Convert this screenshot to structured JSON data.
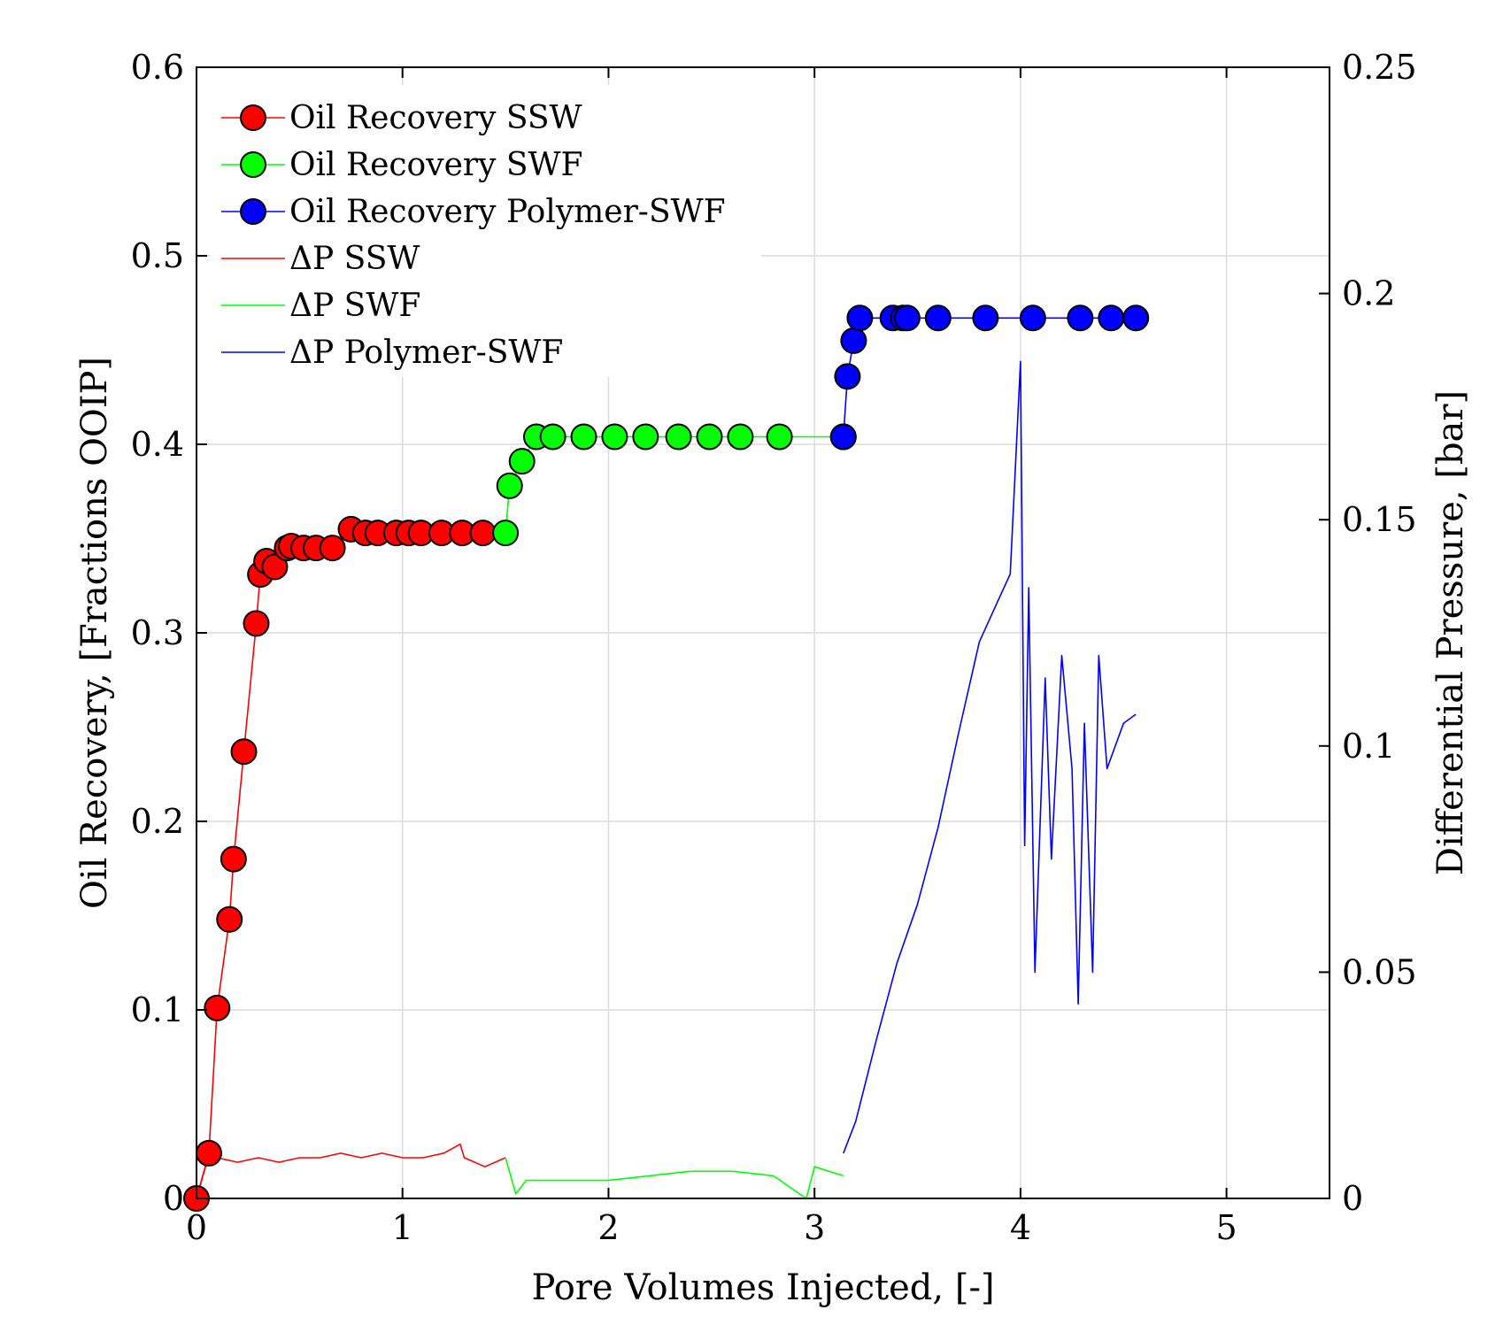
{
  "chart_data": {
    "type": "line",
    "xlabel": "Pore Volumes Injected, [-]",
    "ylabel_left": "Oil Recovery, [Fractions OOIP]",
    "ylabel_right": "Differential Pressure, [bar]",
    "xlim": [
      0,
      5.5
    ],
    "ylim_left": [
      0,
      0.6
    ],
    "ylim_right": [
      0,
      0.25
    ],
    "x_ticks": [
      0,
      1,
      2,
      3,
      4,
      5
    ],
    "x_tick_labels": [
      "0",
      "1",
      "2",
      "3",
      "4",
      "5"
    ],
    "y_left_ticks": [
      0,
      0.1,
      0.2,
      0.3,
      0.4,
      0.5,
      0.6
    ],
    "y_left_tick_labels": [
      "0",
      "0.1",
      "0.2",
      "0.3",
      "0.4",
      "0.5",
      "0.6"
    ],
    "y_right_ticks": [
      0,
      0.05,
      0.1,
      0.15,
      0.2,
      0.25
    ],
    "y_right_tick_labels": [
      "0",
      "0.05",
      "0.1",
      "0.15",
      "0.2",
      "0.25"
    ],
    "grid": true,
    "legend_position": "top-left",
    "series": [
      {
        "name": "Oil Recovery SSW",
        "axis": "left",
        "color": "#ff0000",
        "marker": "circle",
        "x": [
          0.0,
          0.06,
          0.1,
          0.16,
          0.18,
          0.23,
          0.29,
          0.31,
          0.34,
          0.38,
          0.44,
          0.46,
          0.52,
          0.58,
          0.66,
          0.75,
          0.82,
          0.88,
          0.97,
          1.03,
          1.09,
          1.19,
          1.29,
          1.39
        ],
        "y": [
          0.0,
          0.024,
          0.101,
          0.148,
          0.18,
          0.237,
          0.305,
          0.331,
          0.338,
          0.335,
          0.345,
          0.346,
          0.345,
          0.345,
          0.345,
          0.355,
          0.353,
          0.353,
          0.353,
          0.353,
          0.353,
          0.353,
          0.353,
          0.353
        ]
      },
      {
        "name": "Oil Recovery SWF",
        "axis": "left",
        "color": "#00ff00",
        "marker": "circle",
        "x": [
          1.5,
          1.52,
          1.58,
          1.65,
          1.73,
          1.88,
          2.03,
          2.18,
          2.34,
          2.49,
          2.64,
          2.83,
          3.14
        ],
        "y": [
          0.353,
          0.378,
          0.391,
          0.404,
          0.404,
          0.404,
          0.404,
          0.404,
          0.404,
          0.404,
          0.404,
          0.404,
          0.404
        ]
      },
      {
        "name": "Oil Recovery Polymer-SWF",
        "axis": "left",
        "color": "#0000ff",
        "marker": "circle",
        "x": [
          3.14,
          3.16,
          3.19,
          3.22,
          3.38,
          3.43,
          3.45,
          3.6,
          3.83,
          4.06,
          4.29,
          4.44,
          4.56
        ],
        "y": [
          0.404,
          0.436,
          0.455,
          0.467,
          0.467,
          0.467,
          0.467,
          0.467,
          0.467,
          0.467,
          0.467,
          0.467,
          0.467
        ]
      },
      {
        "name": "ΔP SSW",
        "axis": "right",
        "color": "#ff0000",
        "marker": "none",
        "x": [
          0.0,
          0.05,
          0.1,
          0.2,
          0.3,
          0.4,
          0.5,
          0.6,
          0.7,
          0.8,
          0.9,
          1.0,
          1.1,
          1.2,
          1.28,
          1.3,
          1.4,
          1.5
        ],
        "y": [
          0.0,
          0.008,
          0.009,
          0.008,
          0.009,
          0.008,
          0.009,
          0.009,
          0.01,
          0.009,
          0.01,
          0.009,
          0.009,
          0.01,
          0.012,
          0.009,
          0.007,
          0.009
        ]
      },
      {
        "name": "ΔP SWF",
        "axis": "right",
        "color": "#00ff00",
        "marker": "none",
        "x": [
          1.5,
          1.55,
          1.6,
          1.8,
          2.0,
          2.2,
          2.4,
          2.6,
          2.8,
          2.96,
          3.0,
          3.14
        ],
        "y": [
          0.009,
          0.001,
          0.004,
          0.004,
          0.004,
          0.005,
          0.006,
          0.006,
          0.005,
          0.0,
          0.007,
          0.005
        ]
      },
      {
        "name": "ΔP Polymer-SWF",
        "axis": "right",
        "color": "#0000ff",
        "marker": "none",
        "x": [
          3.14,
          3.2,
          3.3,
          3.4,
          3.5,
          3.6,
          3.7,
          3.8,
          3.9,
          3.95,
          4.0,
          4.02,
          4.04,
          4.07,
          4.12,
          4.15,
          4.2,
          4.25,
          4.28,
          4.31,
          4.35,
          4.38,
          4.42,
          4.5,
          4.56
        ],
        "y": [
          0.01,
          0.017,
          0.035,
          0.052,
          0.065,
          0.082,
          0.103,
          0.123,
          0.133,
          0.138,
          0.185,
          0.078,
          0.135,
          0.05,
          0.115,
          0.075,
          0.12,
          0.095,
          0.043,
          0.105,
          0.05,
          0.12,
          0.095,
          0.105,
          0.107
        ]
      }
    ]
  }
}
